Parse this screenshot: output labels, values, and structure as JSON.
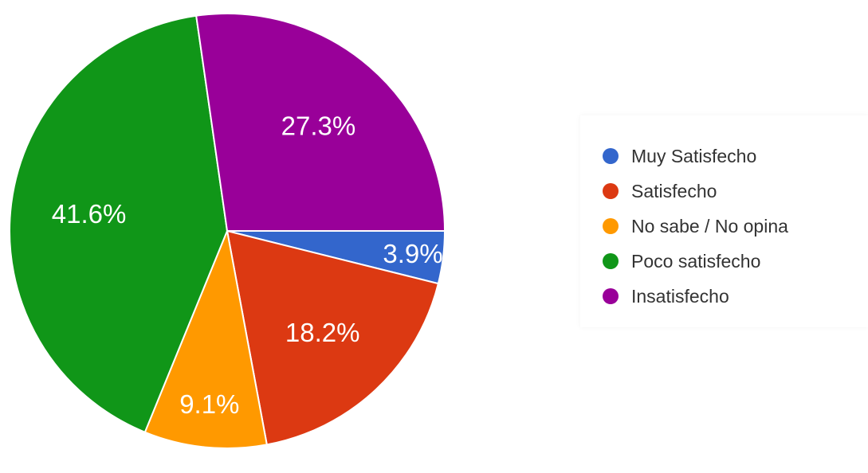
{
  "chart_data": {
    "type": "pie",
    "title": "",
    "slices": [
      {
        "name": "Muy Satisfecho",
        "value": 3.9,
        "label": "3.9%",
        "color": "#3366cc"
      },
      {
        "name": "Satisfecho",
        "value": 18.2,
        "label": "18.2%",
        "color": "#dc3912"
      },
      {
        "name": "No sabe / No opina",
        "value": 9.1,
        "label": "9.1%",
        "color": "#ff9900"
      },
      {
        "name": "Poco satisfecho",
        "value": 41.6,
        "label": "41.6%",
        "color": "#109618"
      },
      {
        "name": "Insatisfecho",
        "value": 27.3,
        "label": "27.3%",
        "color": "#990099"
      }
    ],
    "legend": {
      "placement": "right",
      "entries": [
        "Muy Satisfecho",
        "Satisfecho",
        "No sabe / No opina",
        "Poco satisfecho",
        "Insatisfecho"
      ]
    }
  }
}
